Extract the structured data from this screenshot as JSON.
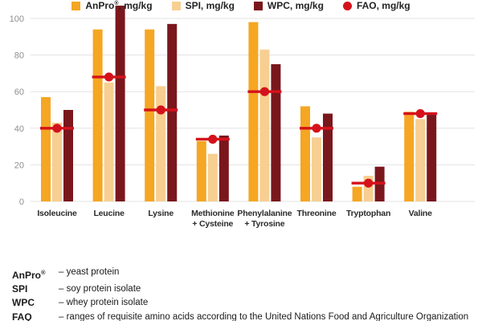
{
  "chart_data": {
    "type": "bar",
    "title": "",
    "unit": "mg/kg",
    "categories": [
      "Isoleucine",
      "Leucine",
      "Lysine",
      "Methionine + Cysteine",
      "Phenylalanine + Tyrosine",
      "Threonine",
      "Tryptophan",
      "Valine"
    ],
    "category_lines": [
      [
        "Isoleucine"
      ],
      [
        "Leucine"
      ],
      [
        "Lysine"
      ],
      [
        "Methionine",
        "+ Cysteine"
      ],
      [
        "Phenylalanine",
        "+ Tyrosine"
      ],
      [
        "Threonine"
      ],
      [
        "Tryptophan"
      ],
      [
        "Valine"
      ]
    ],
    "series": [
      {
        "name": "AnPro®, mg/kg",
        "key": "anpro",
        "color": "#F5A623",
        "values": [
          57,
          94,
          94,
          33,
          98,
          52,
          8,
          49
        ]
      },
      {
        "name": "SPI, mg/kg",
        "key": "spi",
        "color": "#F7CF92",
        "values": [
          43,
          65,
          63,
          26,
          83,
          35,
          14,
          45
        ]
      },
      {
        "name": "WPC, mg/kg",
        "key": "wpc",
        "color": "#7A171C",
        "values": [
          50,
          107,
          97,
          36,
          75,
          48,
          19,
          48
        ]
      }
    ],
    "marker_series": {
      "name": "FAO, mg/kg",
      "key": "fao",
      "color": "#D5121B",
      "values": [
        40,
        68,
        50,
        34,
        60,
        40,
        10,
        48
      ]
    },
    "ylim": [
      0,
      110
    ],
    "yticks": [
      0,
      20,
      40,
      60,
      80,
      100
    ],
    "grid": true,
    "gridline_color": "#E3E3E3",
    "legend_position": "bottom"
  },
  "legend": {
    "items": [
      {
        "name": "AnPro",
        "reg": "®",
        "unit": ", mg/kg",
        "marker": "square",
        "color": "#F5A623"
      },
      {
        "name": "SPI",
        "reg": "",
        "unit": ", mg/kg",
        "marker": "square",
        "color": "#F7CF92"
      },
      {
        "name": "WPC",
        "reg": "",
        "unit": ", mg/kg",
        "marker": "square",
        "color": "#7A171C"
      },
      {
        "name": "FAO",
        "reg": "",
        "unit": ", mg/kg",
        "marker": "circle",
        "color": "#D5121B"
      }
    ]
  },
  "footnotes": [
    {
      "term": "AnPro",
      "sup": "®",
      "definition": "– yeast protein"
    },
    {
      "term": "SPI",
      "sup": "",
      "definition": "– soy protein isolate"
    },
    {
      "term": "WPC",
      "sup": "",
      "definition": "– whey protein isolate"
    },
    {
      "term": "FAQ",
      "sup": "",
      "definition": "– ranges of requisite amino acids according to the United Nations Food and Agriculture Organization"
    }
  ]
}
